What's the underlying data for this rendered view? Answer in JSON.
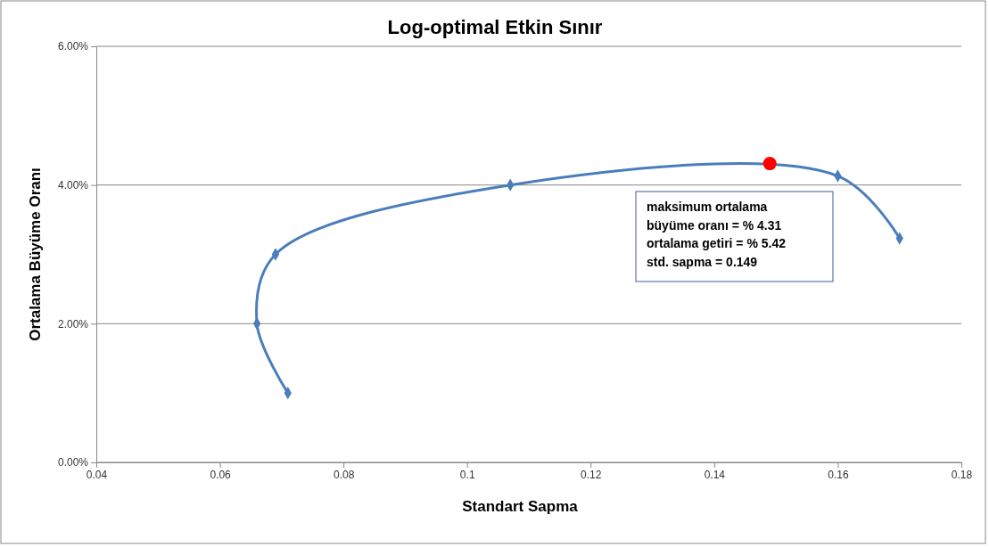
{
  "chart_data": {
    "type": "line",
    "title": "Log-optimal Etkin Sınır",
    "xlabel": "Standart Sapma",
    "ylabel": "Ortalama Büyüme Oranı",
    "xlim": [
      0.04,
      0.18
    ],
    "xticks": [
      0.04,
      0.06,
      0.08,
      0.1,
      0.12,
      0.14,
      0.16,
      0.18
    ],
    "ylim": [
      0,
      6
    ],
    "yticks": [
      {
        "value": 0,
        "label": "0.00%"
      },
      {
        "value": 2,
        "label": "2.00%"
      },
      {
        "value": 4,
        "label": "4.00%"
      },
      {
        "value": 6,
        "label": "6.00%"
      }
    ],
    "grid": "y",
    "series": [
      {
        "type": "line",
        "color": "#4a7ebb",
        "marker": "diamond",
        "line_style": "solid",
        "x": [
          0.071,
          0.066,
          0.069,
          0.107,
          0.16,
          0.17
        ],
        "values": [
          1,
          2,
          3,
          4,
          4.13,
          3.23
        ]
      },
      {
        "type": "scatter",
        "color": "#ff0000",
        "marker": "circle",
        "x": [
          0.149
        ],
        "values": [
          4.31
        ]
      }
    ],
    "annotations": [
      "maksimum ortalama",
      "büyüme oranı = % 4.31",
      "ortalama getiri = % 5.42",
      "std. sapma  = 0.149"
    ]
  }
}
